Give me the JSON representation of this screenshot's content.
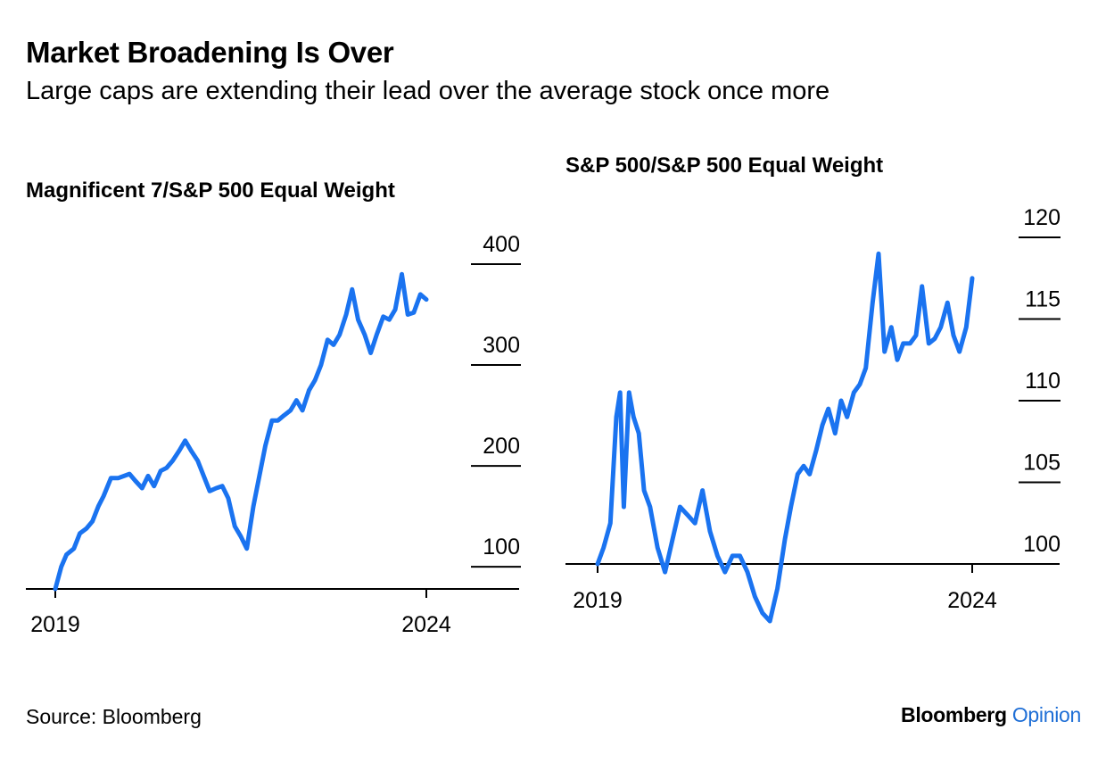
{
  "header": {
    "title": "Market Broadening Is Over",
    "subtitle": "Large caps are extending their lead over the average stock once more"
  },
  "footer": {
    "source": "Source: Bloomberg",
    "brand_main": "Bloomberg",
    "brand_accent": "Opinion"
  },
  "colors": {
    "line": "#1a73f0",
    "axis": "#000000",
    "brand_accent": "#1f6fd6"
  },
  "chart_data": [
    {
      "type": "line",
      "title": "Magnificent 7/S&P 500 Equal Weight",
      "x_ticks": [
        "2019",
        "2024"
      ],
      "x_range": [
        2019.0,
        2024.0
      ],
      "y_ticks": [
        100,
        200,
        300,
        400
      ],
      "y_range": [
        78,
        400
      ],
      "series": [
        {
          "x": [
            2019.0,
            2019.08,
            2019.15,
            2019.25,
            2019.33,
            2019.42,
            2019.5,
            2019.58,
            2019.65,
            2019.75,
            2019.85,
            2020.0,
            2020.08,
            2020.17,
            2020.25,
            2020.33,
            2020.42,
            2020.5,
            2020.58,
            2020.67,
            2020.75,
            2020.83,
            2020.92,
            2021.0,
            2021.08,
            2021.17,
            2021.25,
            2021.33,
            2021.42,
            2021.5,
            2021.58,
            2021.67,
            2021.75,
            2021.83,
            2021.92,
            2022.0,
            2022.08,
            2022.17,
            2022.25,
            2022.33,
            2022.42,
            2022.5,
            2022.58,
            2022.67,
            2022.75,
            2022.83,
            2022.92,
            2023.0,
            2023.08,
            2023.17,
            2023.25,
            2023.33,
            2023.42,
            2023.5,
            2023.58,
            2023.67,
            2023.75,
            2023.83,
            2023.92,
            2024.0
          ],
          "y": [
            78,
            100,
            112,
            118,
            133,
            138,
            145,
            160,
            170,
            188,
            188,
            192,
            185,
            178,
            190,
            180,
            195,
            198,
            205,
            215,
            225,
            215,
            205,
            190,
            175,
            178,
            180,
            168,
            140,
            130,
            118,
            160,
            190,
            220,
            245,
            245,
            250,
            255,
            265,
            255,
            275,
            285,
            300,
            325,
            320,
            330,
            350,
            375,
            345,
            330,
            312,
            330,
            348,
            345,
            355,
            390,
            350,
            352,
            370,
            365
          ]
        }
      ]
    },
    {
      "type": "line",
      "title": "S&P 500/S&P 500 Equal Weight",
      "x_ticks": [
        "2019",
        "2024"
      ],
      "x_range": [
        2019.0,
        2024.0
      ],
      "y_ticks": [
        100,
        105,
        110,
        115,
        120
      ],
      "y_range": [
        96.5,
        120
      ],
      "series": [
        {
          "x": [
            2019.0,
            2019.08,
            2019.17,
            2019.25,
            2019.3,
            2019.35,
            2019.42,
            2019.48,
            2019.55,
            2019.62,
            2019.7,
            2019.8,
            2019.9,
            2020.0,
            2020.1,
            2020.2,
            2020.3,
            2020.4,
            2020.5,
            2020.6,
            2020.7,
            2020.8,
            2020.9,
            2021.0,
            2021.1,
            2021.2,
            2021.3,
            2021.4,
            2021.5,
            2021.58,
            2021.67,
            2021.75,
            2021.83,
            2021.92,
            2022.0,
            2022.08,
            2022.17,
            2022.25,
            2022.33,
            2022.42,
            2022.5,
            2022.58,
            2022.67,
            2022.75,
            2022.83,
            2022.92,
            2023.0,
            2023.08,
            2023.17,
            2023.25,
            2023.33,
            2023.42,
            2023.5,
            2023.58,
            2023.67,
            2023.75,
            2023.83,
            2023.92,
            2024.0
          ],
          "y": [
            100.0,
            101.0,
            102.5,
            109.0,
            110.5,
            103.5,
            110.5,
            109.0,
            108.0,
            104.5,
            103.5,
            101.0,
            99.5,
            101.5,
            103.5,
            103.0,
            102.5,
            104.5,
            102.0,
            100.5,
            99.5,
            100.5,
            100.5,
            99.5,
            98.0,
            97.0,
            96.5,
            98.5,
            101.5,
            103.5,
            105.5,
            106.0,
            105.5,
            107.0,
            108.5,
            109.5,
            108.0,
            110.0,
            109.0,
            110.5,
            111.0,
            112.0,
            116.0,
            119.0,
            113.0,
            114.5,
            112.5,
            113.5,
            113.5,
            114.0,
            117.0,
            113.5,
            113.8,
            114.5,
            116.0,
            114.0,
            113.0,
            114.5,
            117.5
          ]
        }
      ]
    }
  ]
}
